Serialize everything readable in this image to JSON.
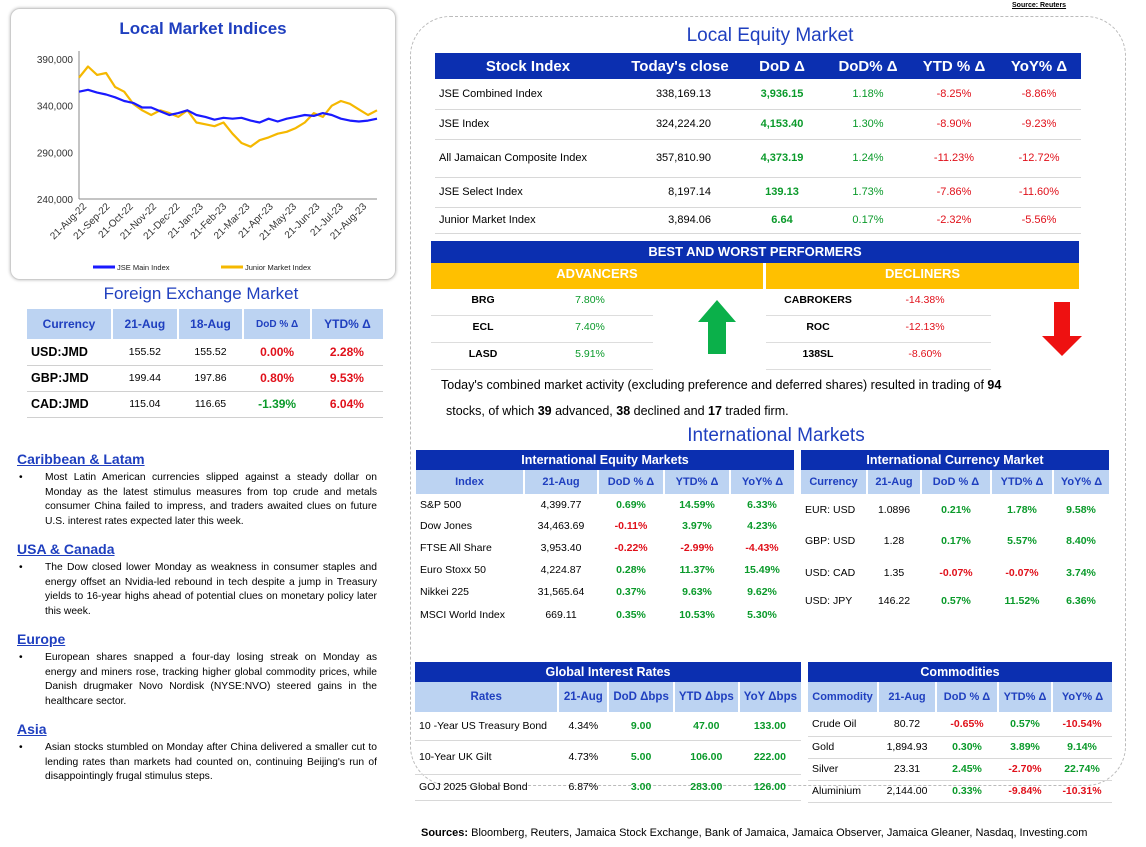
{
  "source_top": "Source: Reuters",
  "chart": {
    "title": "Local Market Indices",
    "legend": [
      "JSE Main Index",
      "Junior Market Index"
    ]
  },
  "chart_data": {
    "type": "line",
    "title": "Local Market Indices",
    "x_ticks": [
      "21-Aug-22",
      "21-Sep-22",
      "21-Oct-22",
      "21-Nov-22",
      "21-Dec-22",
      "21-Jan-23",
      "21-Feb-23",
      "21-Mar-23",
      "21-Apr-23",
      "21-May-23",
      "21-Jun-23",
      "21-Jul-23",
      "21-Aug-23"
    ],
    "y_ticks": [
      "390,000",
      "340,000",
      "290,000",
      "240,000"
    ],
    "ylim": [
      240000,
      390000
    ],
    "series": [
      {
        "name": "JSE Main Index",
        "color": "#1a1aff",
        "values": [
          355000,
          357000,
          354000,
          352000,
          349000,
          345000,
          343000,
          338000,
          338000,
          334000,
          330000,
          332000,
          335000,
          330000,
          328000,
          325000,
          327000,
          326000,
          327000,
          324000,
          322000,
          326000,
          323000,
          326000,
          328000,
          330000,
          329000,
          332000,
          330000,
          326000,
          324000,
          323000,
          324000,
          326000
        ]
      },
      {
        "name": "Junior Market Index",
        "color": "#f5b800",
        "values": [
          370000,
          382000,
          373000,
          375000,
          360000,
          355000,
          342000,
          335000,
          330000,
          335000,
          332000,
          328000,
          335000,
          322000,
          320000,
          318000,
          322000,
          310000,
          300000,
          296000,
          303000,
          306000,
          310000,
          312000,
          316000,
          322000,
          332000,
          328000,
          340000,
          345000,
          342000,
          336000,
          330000,
          335000
        ]
      }
    ]
  },
  "fx": {
    "title": "Foreign Exchange Market",
    "headers": [
      "Currency",
      "21-Aug",
      "18-Aug",
      "DoD % Δ",
      "YTD% Δ"
    ],
    "rows": [
      {
        "cur": "USD:JMD",
        "a": "155.52",
        "b": "155.52",
        "dod": "0.00%",
        "ytd": "2.28%",
        "dodc": "r",
        "ytdc": "r"
      },
      {
        "cur": "GBP:JMD",
        "a": "199.44",
        "b": "197.86",
        "dod": "0.80%",
        "ytd": "9.53%",
        "dodc": "r",
        "ytdc": "r"
      },
      {
        "cur": "CAD:JMD",
        "a": "115.04",
        "b": "116.65",
        "dod": "-1.39%",
        "ytd": "6.04%",
        "dodc": "g",
        "ytdc": "r"
      }
    ]
  },
  "news": [
    {
      "head": "Caribbean & Latam",
      "text": "Most Latin American currencies slipped against a steady dollar on Monday as the latest stimulus measures from top crude and metals consumer China failed to impress, and traders awaited clues on future U.S. interest rates expected later this week."
    },
    {
      "head": "USA & Canada",
      "text": "The Dow closed lower Monday as weakness in consumer staples and energy offset an Nvidia-led rebound in tech despite a jump in Treasury yields to 16-year highs ahead of potential clues on monetary policy later this week."
    },
    {
      "head": "Europe",
      "text": "European shares snapped a four-day losing streak on Monday as energy and miners rose, tracking higher global commodity prices, while Danish drugmaker Novo Nordisk (NYSE:NVO) steered gains in the healthcare sector."
    },
    {
      "head": "Asia",
      "text": "Asian stocks stumbled on Monday after China delivered a smaller cut to lending rates than markets had counted on, continuing Beijing's run of disappointingly frugal stimulus steps."
    }
  ],
  "equity": {
    "title": "Local Equity Market",
    "headers": [
      "Stock Index",
      "Today's close",
      "DoD Δ",
      "DoD% Δ",
      "YTD % Δ",
      "YoY% Δ"
    ],
    "rows": [
      {
        "name": "JSE Combined Index",
        "close": "338,169.13",
        "dod": "3,936.15",
        "dodp": "1.18%",
        "ytd": "-8.25%",
        "yoy": "-8.86%"
      },
      {
        "name": "JSE Index",
        "close": "324,224.20",
        "dod": "4,153.40",
        "dodp": "1.30%",
        "ytd": "-8.90%",
        "yoy": "-9.23%"
      },
      {
        "name": "All Jamaican Composite Index",
        "close": "357,810.90",
        "dod": "4,373.19",
        "dodp": "1.24%",
        "ytd": "-11.23%",
        "yoy": "-12.72%"
      },
      {
        "name": "JSE Select Index",
        "close": "8,197.14",
        "dod": "139.13",
        "dodp": "1.73%",
        "ytd": "-7.86%",
        "yoy": "-11.60%"
      },
      {
        "name": "Junior Market Index",
        "close": "3,894.06",
        "dod": "6.64",
        "dodp": "0.17%",
        "ytd": "-2.32%",
        "yoy": "-5.56%"
      }
    ]
  },
  "performers": {
    "title": "BEST AND WORST PERFORMERS",
    "adv_label": "ADVANCERS",
    "dec_label": "DECLINERS",
    "advancers": [
      {
        "s": "BRG",
        "v": "7.80%"
      },
      {
        "s": "ECL",
        "v": "7.40%"
      },
      {
        "s": "LASD",
        "v": "5.91%"
      }
    ],
    "decliners": [
      {
        "s": "CABROKERS",
        "v": "-14.38%"
      },
      {
        "s": "ROC",
        "v": "-12.13%"
      },
      {
        "s": "138SL",
        "v": "-8.60%"
      }
    ]
  },
  "summary": {
    "p1": "Today's combined market activity (excluding preference and deferred shares) resulted in trading of ",
    "n1": "94",
    "p2": "stocks, of which ",
    "n2": "39",
    "p3": " advanced, ",
    "n3": "38",
    "p4": " declined and ",
    "n4": "17",
    "p5": " traded firm."
  },
  "intl": {
    "title": "International Markets",
    "eq_title": "International Equity Markets",
    "eq_headers": [
      "Index",
      "21-Aug",
      "DoD % Δ",
      "YTD% Δ",
      "YoY% Δ"
    ],
    "eq_rows": [
      {
        "n": "S&P 500",
        "v": "4,399.77",
        "d": "0.69%",
        "y": "14.59%",
        "yy": "6.33%"
      },
      {
        "n": "Dow Jones",
        "v": "34,463.69",
        "d": "-0.11%",
        "y": "3.97%",
        "yy": "4.23%"
      },
      {
        "n": "FTSE All Share",
        "v": "3,953.40",
        "d": "-0.22%",
        "y": "-2.99%",
        "yy": "-4.43%"
      },
      {
        "n": "Euro Stoxx 50",
        "v": "4,224.87",
        "d": "0.28%",
        "y": "11.37%",
        "yy": "15.49%"
      },
      {
        "n": "Nikkei 225",
        "v": "31,565.64",
        "d": "0.37%",
        "y": "9.63%",
        "yy": "9.62%"
      },
      {
        "n": "MSCI World Index",
        "v": "669.11",
        "d": "0.35%",
        "y": "10.53%",
        "yy": "5.30%"
      }
    ],
    "cur_title": "International Currency Market",
    "cur_headers": [
      "Currency",
      "21-Aug",
      "DoD % Δ",
      "YTD% Δ",
      "YoY% Δ"
    ],
    "cur_rows": [
      {
        "n": "EUR: USD",
        "v": "1.0896",
        "d": "0.21%",
        "y": "1.78%",
        "yy": "9.58%"
      },
      {
        "n": "GBP: USD",
        "v": "1.28",
        "d": "0.17%",
        "y": "5.57%",
        "yy": "8.40%"
      },
      {
        "n": "USD: CAD",
        "v": "1.35",
        "d": "-0.07%",
        "y": "-0.07%",
        "yy": "3.74%"
      },
      {
        "n": "USD: JPY",
        "v": "146.22",
        "d": "0.57%",
        "y": "11.52%",
        "yy": "6.36%"
      }
    ],
    "rates_title": "Global Interest Rates",
    "rates_headers": [
      "Rates",
      "21-Aug",
      "DoD Δbps",
      "YTD Δbps",
      "YoY Δbps"
    ],
    "rates_rows": [
      {
        "n": "10 -Year US Treasury Bond",
        "v": "4.34%",
        "d": "9.00",
        "y": "47.00",
        "yy": "133.00"
      },
      {
        "n": "10-Year UK Gilt",
        "v": "4.73%",
        "d": "5.00",
        "y": "106.00",
        "yy": "222.00"
      },
      {
        "n": "GOJ 2025 Global Bond",
        "v": "6.87%",
        "d": "3.00",
        "y": "283.00",
        "yy": "126.00"
      }
    ],
    "com_title": "Commodities",
    "com_headers": [
      "Commodity",
      "21-Aug",
      "DoD % Δ",
      "YTD% Δ",
      "YoY% Δ"
    ],
    "com_rows": [
      {
        "n": "Crude Oil",
        "v": "80.72",
        "d": "-0.65%",
        "y": "0.57%",
        "yy": "-10.54%"
      },
      {
        "n": "Gold",
        "v": "1,894.93",
        "d": "0.30%",
        "y": "3.89%",
        "yy": "9.14%"
      },
      {
        "n": "Silver",
        "v": "23.31",
        "d": "2.45%",
        "y": "-2.70%",
        "yy": "22.74%"
      },
      {
        "n": "Aluminium",
        "v": "2,144.00",
        "d": "0.33%",
        "y": "-9.84%",
        "yy": "-10.31%"
      }
    ]
  },
  "footer": {
    "label": "Sources:",
    "text": " Bloomberg, Reuters, Jamaica Stock Exchange, Bank of Jamaica, Jamaica Observer, Jamaica Gleaner, Nasdaq, Investing.com"
  }
}
